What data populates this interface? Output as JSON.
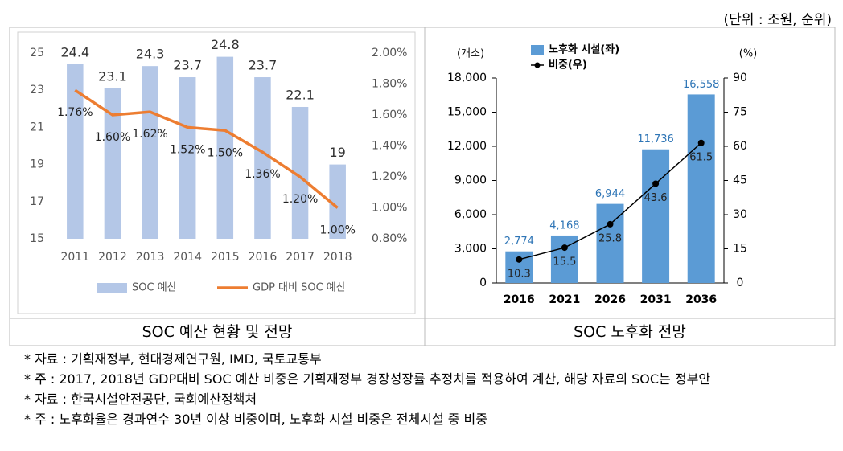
{
  "unit_note": "(단위 : 조원, 순위)",
  "chart_data": [
    {
      "type": "bar",
      "categories": [
        "2011",
        "2012",
        "2013",
        "2014",
        "2015",
        "2016",
        "2017",
        "2018"
      ],
      "series": [
        {
          "name": "SOC 예산",
          "type": "bar",
          "color": "#b4c7e7",
          "axis": "y",
          "values": [
            24.4,
            23.1,
            24.3,
            23.7,
            24.8,
            23.7,
            22.1,
            19
          ]
        },
        {
          "name": "GDP 대비 SOC 예산",
          "type": "line",
          "color": "#ed7d31",
          "axis": "y2",
          "values": [
            1.76,
            1.6,
            1.62,
            1.52,
            1.5,
            1.36,
            1.2,
            1.0
          ],
          "value_labels": [
            "1.76%",
            "1.60%",
            "1.62%",
            "1.52%",
            "1.50%",
            "1.36%",
            "1.20%",
            "1.00%"
          ]
        }
      ],
      "ylim": [
        15,
        25
      ],
      "yticks": [
        15,
        17,
        19,
        21,
        23,
        25
      ],
      "y2lim": [
        0.8,
        2.0
      ],
      "y2ticks": [
        {
          "value": 0.8,
          "label": "0.80%"
        },
        {
          "value": 1.0,
          "label": "1.00%"
        },
        {
          "value": 1.2,
          "label": "1.20%"
        },
        {
          "value": 1.4,
          "label": "1.40%"
        },
        {
          "value": 1.6,
          "label": "1.60%"
        },
        {
          "value": 1.8,
          "label": "1.80%"
        },
        {
          "value": 2.0,
          "label": "2.00%"
        }
      ],
      "legend": "bottom"
    },
    {
      "type": "bar",
      "categories": [
        "2016",
        "2021",
        "2026",
        "2031",
        "2036"
      ],
      "series": [
        {
          "name": "노후화 시설(좌)",
          "type": "bar",
          "color": "#5b9bd5",
          "axis": "y",
          "values": [
            2774,
            4168,
            6944,
            11736,
            16558
          ],
          "value_labels": [
            "2,774",
            "4,168",
            "6,944",
            "11,736",
            "16,558"
          ]
        },
        {
          "name": "비중(우)",
          "type": "line",
          "color": "#000000",
          "axis": "y2",
          "marker": true,
          "values": [
            10.3,
            15.5,
            25.8,
            43.6,
            61.5
          ]
        }
      ],
      "ylabel": "(개소)",
      "y2label": "(%)",
      "ylim": [
        0,
        18000
      ],
      "yticks": [
        0,
        {
          "value": 3000,
          "label": "3,000"
        },
        {
          "value": 6000,
          "label": "6,000"
        },
        {
          "value": 9000,
          "label": "9,000"
        },
        {
          "value": 12000,
          "label": "12,000"
        },
        {
          "value": 15000,
          "label": "15,000"
        },
        {
          "value": 18000,
          "label": "18,000"
        }
      ],
      "y2lim": [
        0,
        90
      ],
      "y2ticks": [
        0,
        15,
        30,
        45,
        60,
        75,
        90
      ],
      "legend": "top-left"
    }
  ],
  "captions": [
    "SOC 예산 현황 및 전망",
    "SOC 노후화 전망"
  ],
  "notes": [
    "* 자료 : 기획재정부, 현대경제연구원, IMD, 국토교통부",
    "* 주 : 2017, 2018년 GDP대비 SOC 예산 비중은 기획재정부 경장성장률 추정치를 적용하여 계산, 해당 자료의 SOC는 정부안",
    "* 자료 : 한국시설안전공단, 국회예산정책처",
    "* 주 : 노후화율은 경과연수 30년 이상 비중이며, 노후화 시설 비중은 전체시설 중 비중"
  ]
}
